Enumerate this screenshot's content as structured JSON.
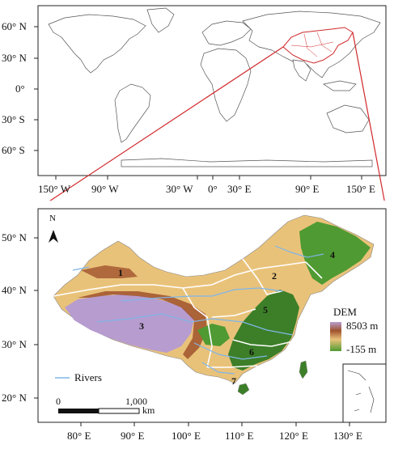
{
  "world_map": {
    "lat_labels": [
      "60° N",
      "30° N",
      "0°",
      "30° S",
      "60° S"
    ],
    "lon_labels": [
      "150° W",
      "90° W",
      "30° W",
      "0°",
      "30° E",
      "90° E",
      "150° E"
    ]
  },
  "china_map": {
    "lat_labels": [
      "50° N",
      "40° N",
      "30° N",
      "20° N"
    ],
    "lon_labels": [
      "80° E",
      "90° E",
      "100° E",
      "110° E",
      "120° E",
      "130° E"
    ],
    "north_arrow": "N",
    "regions": [
      "1",
      "2",
      "3",
      "4",
      "5",
      "6",
      "7"
    ],
    "legend": {
      "title": "DEM",
      "high": "8503 m",
      "low": "-155 m",
      "rivers": "Rivers"
    },
    "scale_bar": {
      "start": "0",
      "end": "1,000",
      "unit": "km"
    },
    "colors": {
      "high": "#b79ccf",
      "mid_high": "#a0522d",
      "mid": "#e9c27a",
      "low": "#4f9a32",
      "lowest": "#3c7f28",
      "rivers": "#7fb6e8",
      "china_outline": "#d1282b"
    }
  }
}
